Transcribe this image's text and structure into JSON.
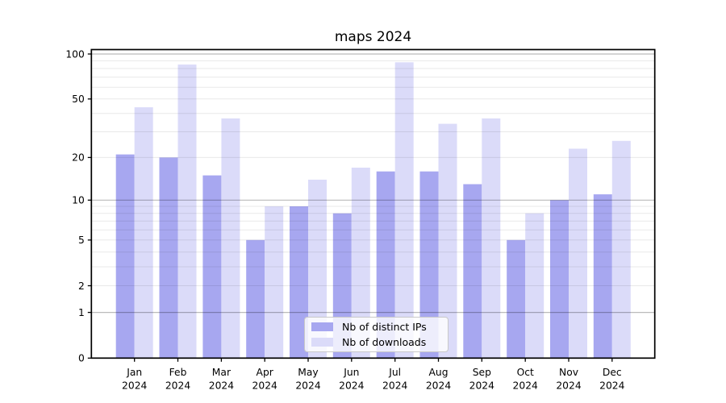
{
  "chart_data": {
    "type": "bar",
    "title": "maps 2024",
    "categories": [
      "Jan",
      "Feb",
      "Mar",
      "Apr",
      "May",
      "Jun",
      "Jul",
      "Aug",
      "Sep",
      "Oct",
      "Nov",
      "Dec"
    ],
    "x_tick_second_line": "2024",
    "series": [
      {
        "name": "Nb of distinct IPs",
        "color": "#a7a7f0",
        "values": [
          21,
          20,
          15,
          5,
          9,
          8,
          16,
          16,
          13,
          5,
          10,
          11
        ]
      },
      {
        "name": "Nb of downloads",
        "color": "#dbdbf9",
        "values": [
          44,
          85,
          37,
          9,
          14,
          17,
          88,
          34,
          37,
          8,
          23,
          26
        ]
      }
    ],
    "y_ticks": [
      0,
      1,
      2,
      5,
      10,
      20,
      50,
      100
    ],
    "y_minor_gridlines": [
      2,
      3,
      4,
      5,
      6,
      7,
      8,
      9,
      20,
      30,
      40,
      50,
      60,
      70,
      80,
      90
    ],
    "y_major_gridlines": [
      1,
      10,
      100
    ],
    "y_scale": "log1p",
    "y_max": 107,
    "ylim": [
      0,
      107
    ],
    "grid": true,
    "legend_position": "lower center",
    "xlabel": "",
    "ylabel": ""
  }
}
